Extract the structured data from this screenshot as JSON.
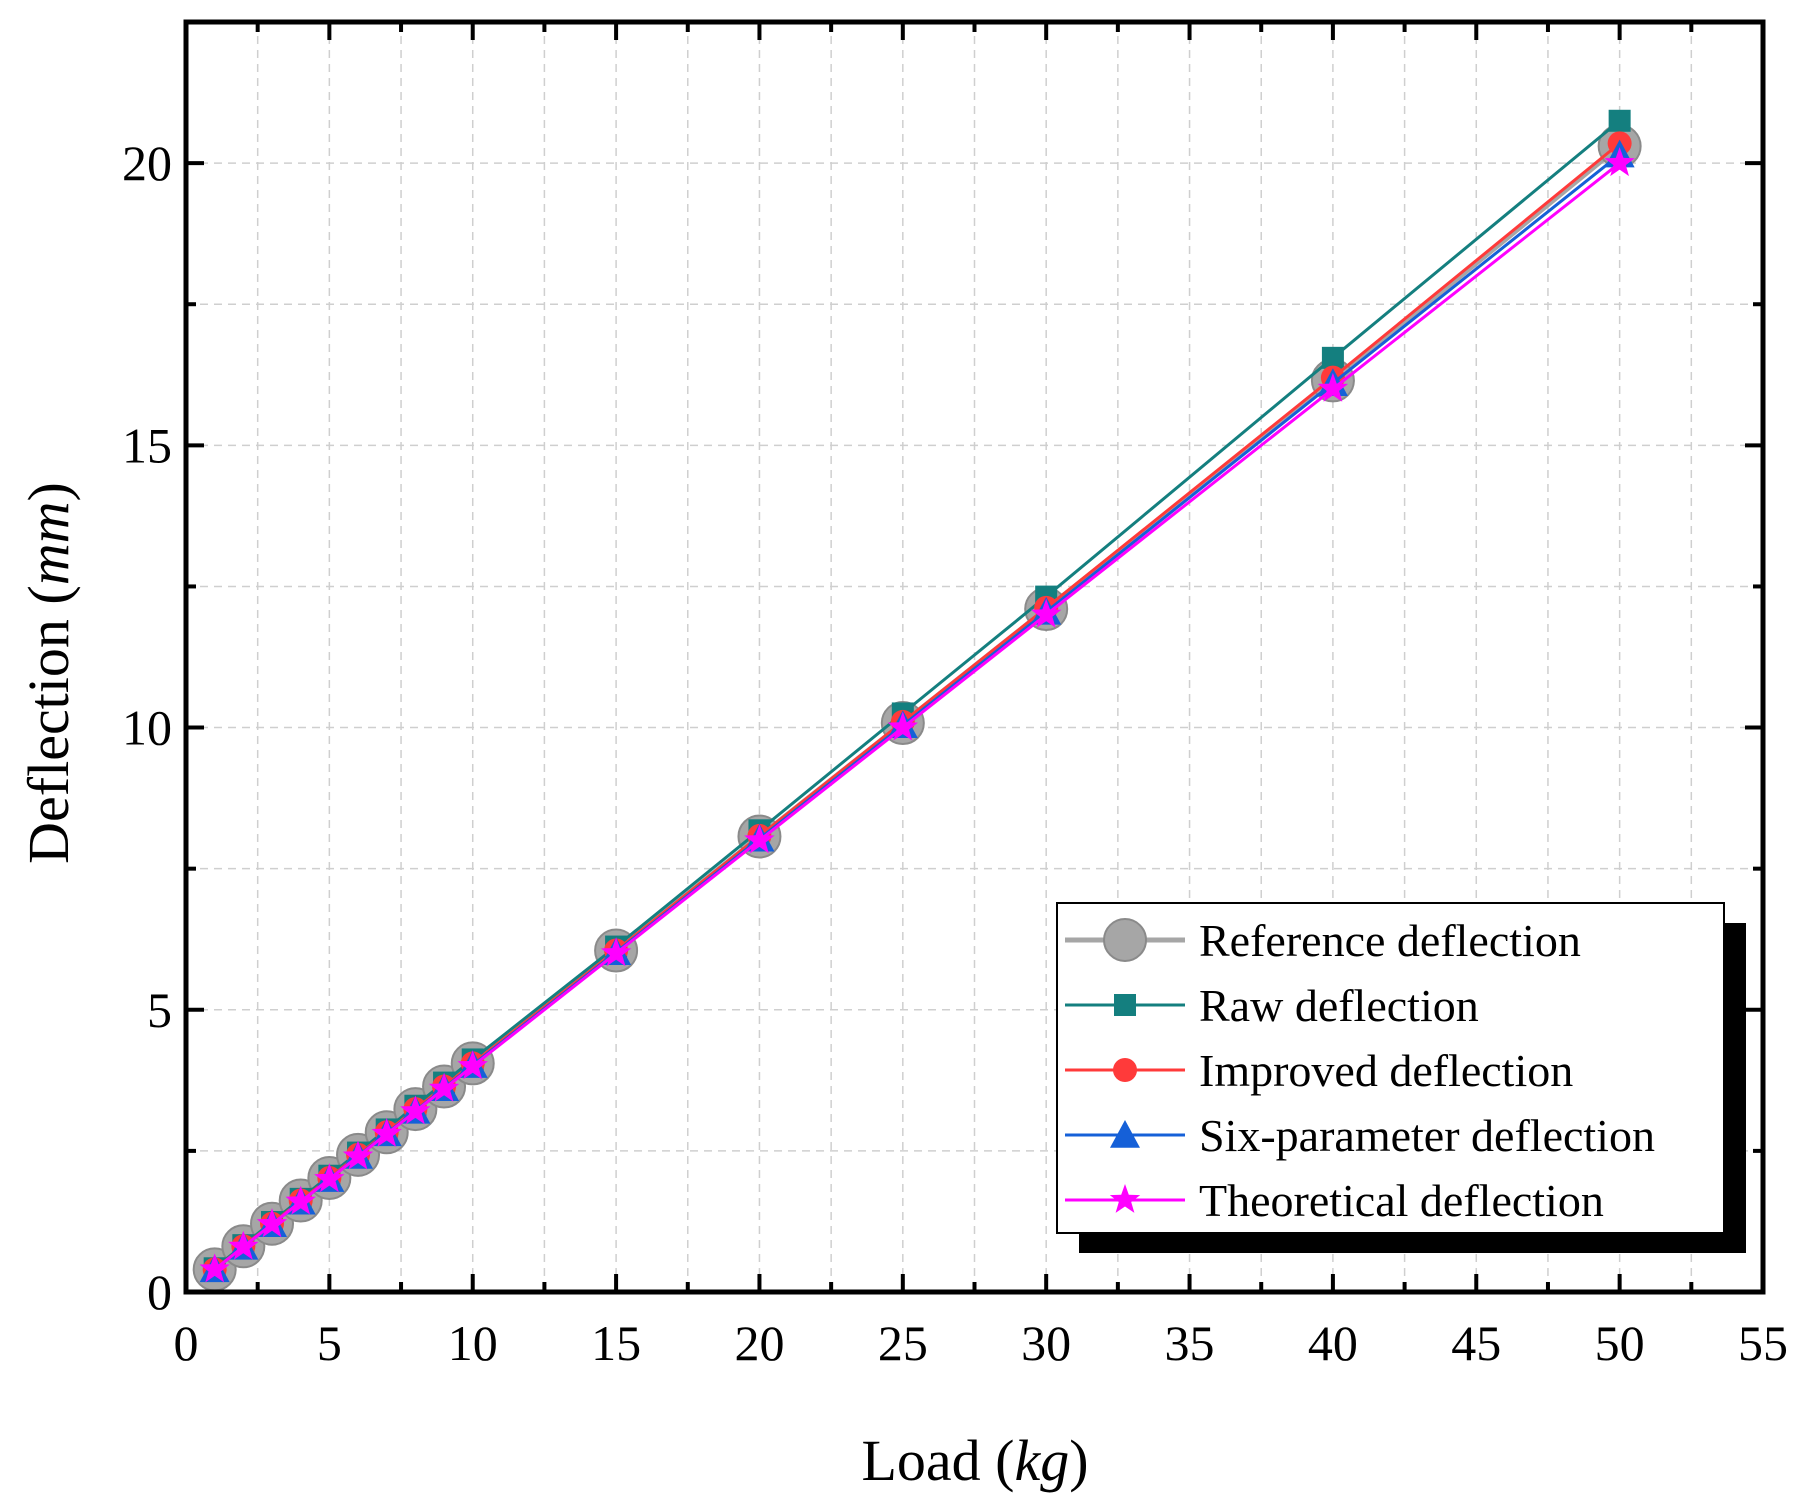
{
  "chart_data": {
    "type": "line",
    "xlabel": "Load",
    "xlabel_unit": "kg",
    "ylabel": "Deflection",
    "ylabel_unit": "mm",
    "xlim": [
      0,
      55
    ],
    "ylim": [
      0,
      22.5
    ],
    "xticks": [
      0,
      5,
      10,
      15,
      20,
      25,
      30,
      35,
      40,
      45,
      50,
      55
    ],
    "yticks": [
      0,
      5,
      10,
      15,
      20
    ],
    "grid": true,
    "legend_position": "bottom-right",
    "x": [
      1,
      2,
      3,
      4,
      5,
      6,
      7,
      8,
      9,
      10,
      15,
      20,
      25,
      30,
      40,
      50
    ],
    "series": [
      {
        "name": "Reference deflection",
        "color": "#a6a6a6",
        "marker": "circle",
        "values": [
          0.4,
          0.81,
          1.21,
          1.62,
          2.02,
          2.43,
          2.83,
          3.24,
          3.64,
          4.05,
          6.05,
          8.07,
          10.08,
          12.1,
          16.15,
          20.3
        ]
      },
      {
        "name": "Raw deflection",
        "color": "#147f7f",
        "marker": "square",
        "values": [
          0.42,
          0.83,
          1.24,
          1.65,
          2.06,
          2.47,
          2.88,
          3.3,
          3.71,
          4.12,
          6.12,
          8.18,
          10.25,
          12.32,
          16.55,
          20.75
        ]
      },
      {
        "name": "Improved deflection",
        "color": "#ff3a3a",
        "marker": "circle",
        "values": [
          0.4,
          0.81,
          1.21,
          1.62,
          2.02,
          2.43,
          2.83,
          3.24,
          3.64,
          4.05,
          6.05,
          8.08,
          10.1,
          12.12,
          16.2,
          20.35
        ]
      },
      {
        "name": "Six-parameter deflection",
        "color": "#1560d8",
        "marker": "triangle",
        "values": [
          0.4,
          0.8,
          1.2,
          1.6,
          2.0,
          2.41,
          2.81,
          3.21,
          3.61,
          4.02,
          6.02,
          8.03,
          10.04,
          12.05,
          16.1,
          20.15
        ]
      },
      {
        "name": "Theoretical deflection",
        "color": "#ff00ff",
        "marker": "star",
        "values": [
          0.4,
          0.8,
          1.2,
          1.6,
          2.0,
          2.4,
          2.8,
          3.2,
          3.6,
          4.0,
          6.0,
          8.0,
          10.0,
          12.0,
          16.0,
          20.0
        ]
      }
    ]
  }
}
